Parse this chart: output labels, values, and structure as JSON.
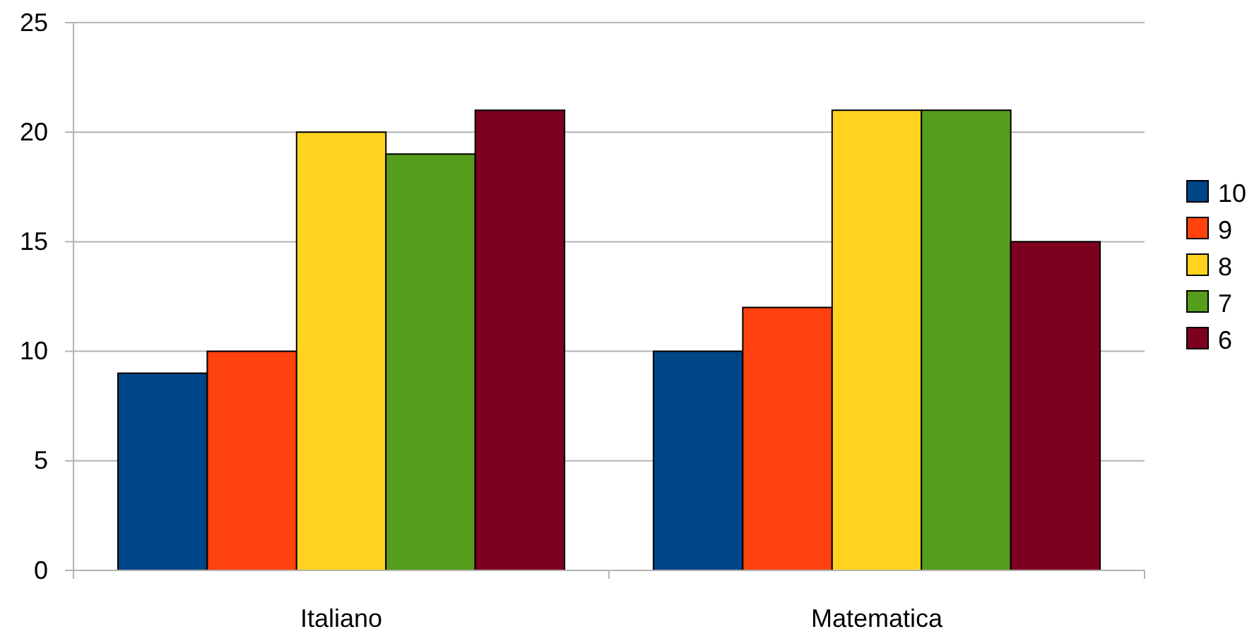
{
  "chart_data": {
    "type": "bar",
    "categories": [
      "Italiano",
      "Matematica"
    ],
    "series": [
      {
        "name": "10",
        "color": "#004586",
        "values": [
          9,
          10
        ]
      },
      {
        "name": "9",
        "color": "#ff420e",
        "values": [
          10,
          12
        ]
      },
      {
        "name": "8",
        "color": "#ffd320",
        "values": [
          20,
          21
        ]
      },
      {
        "name": "7",
        "color": "#579d1c",
        "values": [
          19,
          21
        ]
      },
      {
        "name": "6",
        "color": "#7e0021",
        "values": [
          21,
          15
        ]
      }
    ],
    "ylim": [
      0,
      25
    ],
    "yticks": [
      0,
      5,
      10,
      15,
      20,
      25
    ],
    "grid": "y",
    "legend": "right"
  }
}
